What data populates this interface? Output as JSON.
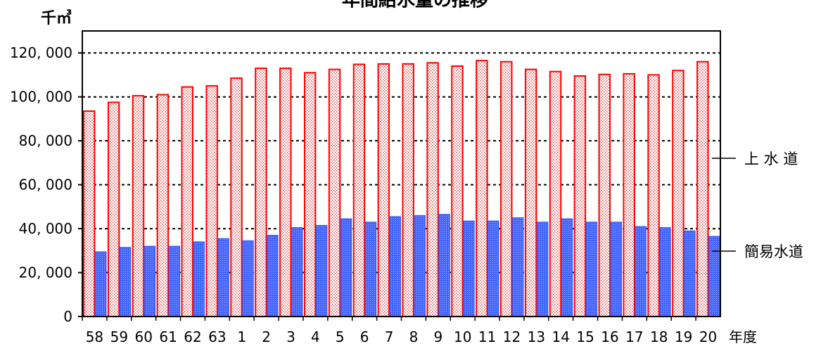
{
  "chart_data": {
    "type": "bar",
    "title": "年間給水量の推移",
    "y_unit": "千㎥",
    "x_unit": "年度",
    "ylim": [
      0,
      130000
    ],
    "yticks": [
      0,
      20000,
      40000,
      60000,
      80000,
      100000,
      120000
    ],
    "ytick_labels": [
      "0",
      "20, 000",
      "40, 000",
      "60, 000",
      "80, 000",
      "100, 000",
      "120, 000"
    ],
    "grid": "dashed horizontal",
    "categories": [
      "58",
      "59",
      "60",
      "61",
      "62",
      "63",
      "1",
      "2",
      "3",
      "4",
      "5",
      "6",
      "7",
      "8",
      "9",
      "10",
      "11",
      "12",
      "13",
      "14",
      "15",
      "16",
      "17",
      "18",
      "19",
      "20"
    ],
    "series": [
      {
        "name": "上 水 道",
        "color": "#ff0000",
        "fill": "dotted pink",
        "values": [
          93500,
          97500,
          100500,
          101000,
          104500,
          105000,
          108500,
          113000,
          113000,
          111000,
          112500,
          114800,
          115000,
          115000,
          115500,
          114000,
          116500,
          116000,
          112500,
          111500,
          109500,
          110200,
          110500,
          110000,
          112000,
          116000
        ]
      },
      {
        "name": "簡易水道",
        "color": "#3355ee",
        "fill": "dotted blue",
        "values": [
          29500,
          31500,
          32000,
          32000,
          34000,
          35500,
          34500,
          37000,
          40500,
          41500,
          44500,
          43000,
          45500,
          46000,
          46500,
          43500,
          43500,
          45000,
          43000,
          44500,
          43000,
          43000,
          41000,
          40500,
          39000,
          36500
        ]
      }
    ]
  }
}
